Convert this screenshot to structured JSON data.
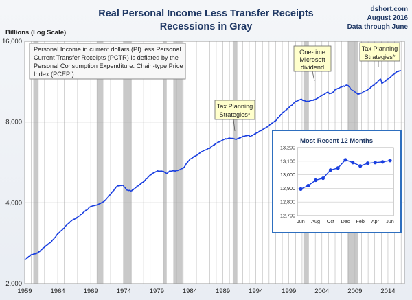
{
  "header": {
    "title_line1": "Real Personal Income Less Transfer Receipts",
    "title_line2": "Recessions in Gray",
    "source": "dshort.com",
    "date": "August 2016",
    "data_through": "Data through June"
  },
  "note_box": {
    "lines": [
      "Personal Income in current dollars  (PI) less Personal",
      "Current Transfer Receipts (PCTR) is deflated by the",
      "Personal Consumption Expenditure: Chain-type Price",
      "Index (PCEPI)"
    ]
  },
  "callouts": [
    {
      "lines": [
        "Tax Planning",
        "Strategies*"
      ],
      "x": 1992.7
    },
    {
      "lines": [
        "One-time",
        "Microsoft",
        "dividend"
      ],
      "x": 2004.9
    },
    {
      "lines": [
        "Tax Planning",
        "Strategies*"
      ],
      "x": 2012.9
    }
  ],
  "colors": {
    "line": "#1a3fe0",
    "recession": "#c9c9c9",
    "grid": "#b5b5b5",
    "title": "#1f3864",
    "inset_border": "#2e6fbf",
    "callout_fill": "#ffffcc"
  },
  "chart_data": [
    {
      "type": "line",
      "title": "Real Personal Income Less Transfer Receipts",
      "subtitle": "Recessions in Gray",
      "ylabel": "Billions (Log Scale)",
      "y_scale": "log",
      "ylim": [
        2000,
        16000
      ],
      "y_ticks": [
        2000,
        4000,
        8000,
        16000
      ],
      "y_tick_labels": [
        "2,000",
        "4,000",
        "8,000",
        "16,000"
      ],
      "xlim": [
        1959,
        2016.5
      ],
      "x_ticks": [
        1959,
        1964,
        1969,
        1974,
        1979,
        1984,
        1989,
        1994,
        1999,
        2004,
        2009,
        2014
      ],
      "recessions": [
        [
          1960.3,
          1961.1
        ],
        [
          1969.9,
          1970.9
        ],
        [
          1973.9,
          1975.2
        ],
        [
          1980.0,
          1980.5
        ],
        [
          1981.5,
          1982.9
        ],
        [
          1990.5,
          1991.2
        ],
        [
          2001.2,
          2001.9
        ],
        [
          2007.9,
          2009.5
        ]
      ],
      "series": [
        {
          "x": [
            1959,
            1960,
            1960.5,
            1961,
            1962,
            1963,
            1964,
            1965,
            1966,
            1967,
            1968,
            1969,
            1970,
            1971,
            1972,
            1973,
            1973.9,
            1974.5,
            1975.2,
            1976,
            1977,
            1978,
            1979,
            1979.8,
            1980.5,
            1981,
            1982,
            1983,
            1984,
            1985,
            1986,
            1987,
            1988,
            1989,
            1990,
            1991,
            1992,
            1992.9,
            1993.1,
            1994,
            1995,
            1996,
            1997,
            1998,
            1999,
            2000,
            2000.8,
            2001.5,
            2002,
            2003,
            2004,
            2004.9,
            2005.1,
            2005.6,
            2006,
            2007,
            2007.9,
            2008.5,
            2009.5,
            2010,
            2011,
            2012,
            2012.9,
            2013.1,
            2014,
            2015,
            2015.5,
            2016
          ],
          "y": [
            2450,
            2560,
            2580,
            2600,
            2740,
            2860,
            3060,
            3230,
            3420,
            3530,
            3700,
            3880,
            3940,
            4040,
            4310,
            4610,
            4640,
            4450,
            4430,
            4600,
            4790,
            5080,
            5250,
            5250,
            5150,
            5250,
            5260,
            5380,
            5810,
            6010,
            6250,
            6390,
            6660,
            6870,
            6980,
            6890,
            7060,
            7150,
            7060,
            7240,
            7480,
            7760,
            8100,
            8640,
            9050,
            9520,
            9730,
            9550,
            9550,
            9710,
            10050,
            10350,
            10180,
            10280,
            10540,
            10800,
            10980,
            10550,
            10150,
            10260,
            10580,
            11050,
            11580,
            11120,
            11560,
            12130,
            12350,
            12420
          ]
        }
      ]
    },
    {
      "type": "line",
      "title": "Most Recent 12 Months",
      "ylim": [
        12700,
        13200
      ],
      "y_ticks": [
        12700,
        12800,
        12900,
        13000,
        13100,
        13200
      ],
      "y_tick_labels": [
        "12,700",
        "12,800",
        "12,900",
        "13,000",
        "13,100",
        "13,200"
      ],
      "x_tick_labels": [
        "Jun",
        "Aug",
        "Oct",
        "Dec",
        "Feb",
        "Apr",
        "Jun"
      ],
      "categories": [
        "Jun",
        "Jul",
        "Aug",
        "Sep",
        "Oct",
        "Nov",
        "Dec",
        "Jan",
        "Feb",
        "Mar",
        "Apr",
        "May",
        "Jun"
      ],
      "series": [
        {
          "values": [
            12895,
            12920,
            12960,
            12975,
            13035,
            13050,
            13110,
            13090,
            13065,
            13085,
            13090,
            13095,
            13105
          ]
        }
      ]
    }
  ]
}
